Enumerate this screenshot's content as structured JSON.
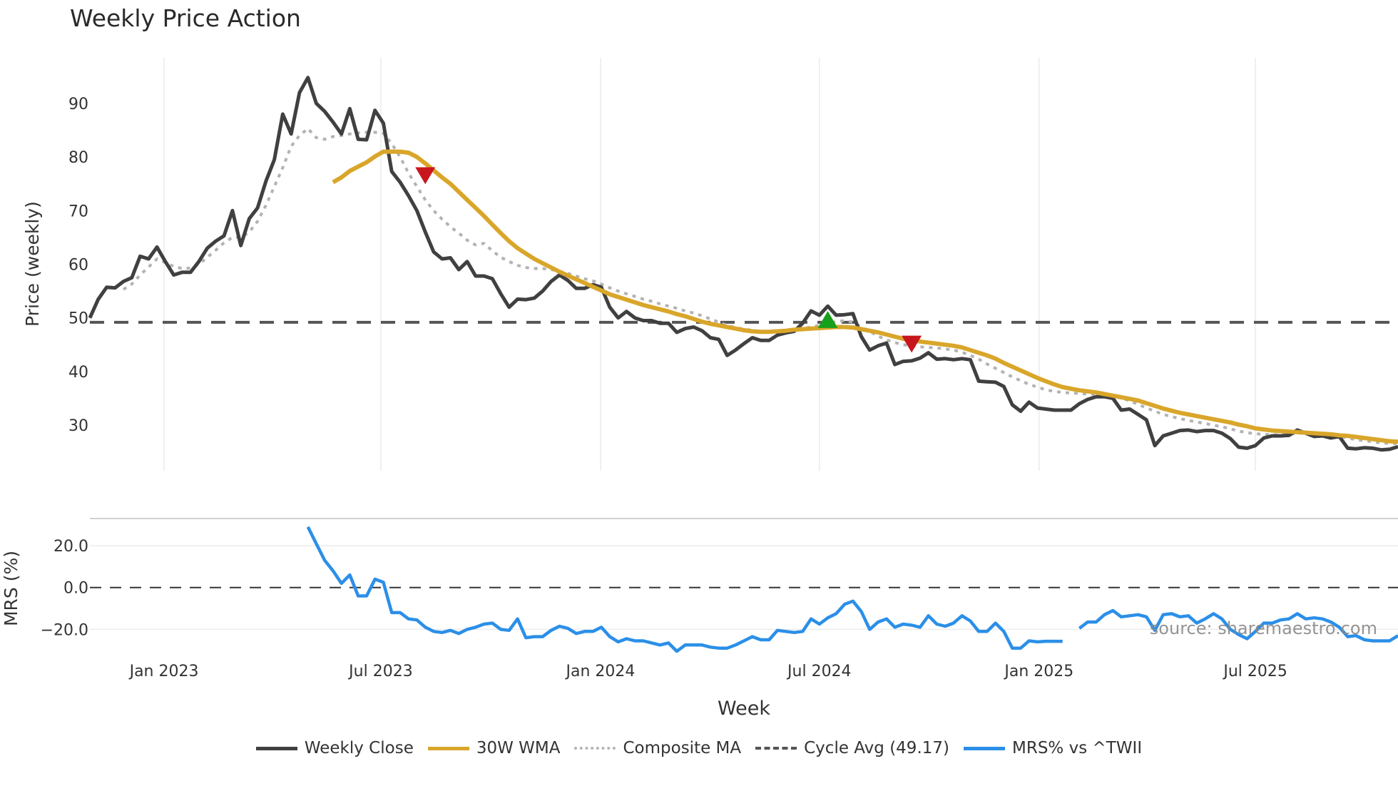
{
  "chart_data": {
    "type": "line",
    "title": "Weekly Price Action",
    "xlabel": "Week",
    "ylabel": "Price (weekly)",
    "ylabel_lower": "MRS (%)",
    "x_unit": "week index (weekly bars, approx. Nov 2022 - Oct 2025)",
    "xlim": [
      0,
      156
    ],
    "ylim": [
      21.5,
      98.5
    ],
    "ylim_lower": [
      -32.5,
      33
    ],
    "yticks": [
      30,
      40,
      50,
      60,
      70,
      80,
      90
    ],
    "yticks_lower": [
      {
        "v": 20,
        "label": "20.0"
      },
      {
        "v": 0,
        "label": "0.0"
      },
      {
        "v": -20,
        "label": "−20.0"
      }
    ],
    "xticks": [
      {
        "week": 8.85,
        "label": "Jan 2023"
      },
      {
        "week": 34.7,
        "label": "Jul 2023"
      },
      {
        "week": 60.9,
        "label": "Jan 2024"
      },
      {
        "week": 87.0,
        "label": "Jul 2024"
      },
      {
        "week": 113.2,
        "label": "Jan 2025"
      },
      {
        "week": 139.0,
        "label": "Jul 2025"
      }
    ],
    "cycle_avg": 49.17,
    "series": [
      {
        "name": "Weekly Close",
        "color": "#404040",
        "start": 0,
        "values": [
          50,
          53.5,
          55.7,
          55.6,
          56.8,
          57.5,
          61.5,
          61,
          63.2,
          60.5,
          58,
          58.5,
          58.5,
          60.5,
          63,
          64.3,
          65.3,
          70,
          63.5,
          68.5,
          70.5,
          75.5,
          79.5,
          88,
          84.3,
          92,
          94.8,
          90,
          88.5,
          86.5,
          84.3,
          89,
          83.3,
          83.2,
          88.7,
          86.3,
          77.3,
          75.3,
          72.8,
          70,
          66,
          62.3,
          61,
          61.2,
          59,
          60.5,
          57.8,
          57.8,
          57.3,
          54.5,
          52,
          53.5,
          53.4,
          53.7,
          55,
          56.8,
          58,
          57,
          55.5,
          55.5,
          56.2,
          55.7,
          52,
          50,
          51.2,
          50,
          49.5,
          49.5,
          49,
          49,
          47.3,
          48,
          48.3,
          47.6,
          46.3,
          46,
          43,
          44,
          45.2,
          46.3,
          45.8,
          45.8,
          46.8,
          47.2,
          47.5,
          49,
          51.3,
          50.5,
          52.2,
          50.5,
          50.6,
          50.8,
          46.5,
          44,
          44.8,
          45.3,
          41.3,
          41.9,
          42,
          42.5,
          43.5,
          42.3,
          42.4,
          42.2,
          42.4,
          42.2,
          38.2,
          38.1,
          38,
          37.2,
          33.8,
          32.6,
          34.3,
          33.2,
          33,
          32.8,
          32.8,
          32.8,
          34,
          34.8,
          35.3,
          35.3,
          35,
          32.8,
          33,
          32,
          31,
          26.2,
          28,
          28.5,
          29,
          29.1,
          28.8,
          29,
          29,
          28.5,
          27.5,
          25.9,
          25.7,
          26.2,
          27.6,
          28,
          28,
          28.1,
          29.1,
          28.5,
          27.9,
          28,
          27.6,
          27.9,
          25.7,
          25.6,
          25.8,
          25.7,
          25.4,
          25.5,
          26
        ]
      },
      {
        "name": "30W WMA",
        "color": "#D9A62A",
        "start": 29,
        "values": [
          75.3,
          76.2,
          77.4,
          78.2,
          79,
          80.1,
          81,
          81,
          81,
          80.8,
          80,
          78.8,
          77.5,
          76.2,
          75,
          73.5,
          72,
          70.5,
          69,
          67.4,
          65.8,
          64.3,
          63,
          62,
          61,
          60.2,
          59.4,
          58.6,
          57.9,
          57.2,
          56.5,
          55.8,
          55.1,
          54.4,
          53.9,
          53.4,
          52.9,
          52.4,
          52,
          51.6,
          51.2,
          50.7,
          50.3,
          49.8,
          49.3,
          48.9,
          48.6,
          48.3,
          48,
          47.7,
          47.5,
          47.4,
          47.4,
          47.5,
          47.6,
          47.8,
          47.9,
          48,
          48.1,
          48.2,
          48.3,
          48.3,
          48.2,
          47.9,
          47.6,
          47.3,
          46.9,
          46.5,
          46.1,
          45.8,
          45.6,
          45.4,
          45.2,
          45,
          44.8,
          44.5,
          44,
          43.5,
          43,
          42.4,
          41.6,
          40.9,
          40.2,
          39.5,
          38.8,
          38.2,
          37.6,
          37.1,
          36.8,
          36.5,
          36.3,
          36.1,
          35.8,
          35.5,
          35.2,
          34.9,
          34.6,
          34.1,
          33.6,
          33.1,
          32.7,
          32.3,
          32,
          31.7,
          31.4,
          31.1,
          30.8,
          30.5,
          30.1,
          29.8,
          29.4,
          29.2,
          29,
          28.9,
          28.8,
          28.7,
          28.6,
          28.5,
          28.4,
          28.3,
          28.1,
          28,
          27.8,
          27.6,
          27.4,
          27.2,
          27,
          26.9
        ]
      },
      {
        "name": "Composite MA",
        "color": "#B3B3B3",
        "start": 4,
        "values": [
          55.3,
          56.3,
          58,
          59.5,
          61,
          60.3,
          59.6,
          59.2,
          59.3,
          60,
          61.3,
          62.6,
          64,
          65,
          65,
          66,
          68,
          71,
          74.5,
          78,
          82,
          84,
          85.3,
          83.6,
          83.3,
          83.8,
          84,
          84.3,
          84.5,
          84.6,
          84.6,
          84.4,
          82.5,
          80,
          77,
          74.5,
          72,
          70,
          68.4,
          67,
          65.8,
          64.5,
          63.6,
          63.9,
          62.5,
          61.3,
          60.5,
          59.8,
          59.4,
          59.2,
          59.2,
          59,
          58.7,
          58.3,
          57.8,
          57.3,
          56.9,
          56.3,
          55.6,
          55,
          54.5,
          54,
          53.5,
          53.1,
          52.6,
          52.2,
          51.8,
          51.3,
          50.9,
          50.4,
          49.8,
          49.2,
          48.6,
          48.2,
          47.9,
          47.7,
          47.5,
          47.5,
          47.6,
          47.7,
          47.8,
          48,
          48.3,
          48.6,
          49,
          49.3,
          49.5,
          49.2,
          48.3,
          47.5,
          46.6,
          45.9,
          45.4,
          45,
          44.8,
          44.6,
          44.5,
          44.4,
          44.2,
          44,
          43.6,
          43,
          42.3,
          41.4,
          40.6,
          39.8,
          39,
          38.3,
          37.6,
          37.1,
          36.6,
          36.3,
          36.1,
          36,
          35.9,
          35.8,
          35.7,
          35.6,
          35.4,
          35.1,
          34.5,
          33.9,
          33.2,
          32.6,
          32,
          31.6,
          31.2,
          30.9,
          30.6,
          30.3,
          30,
          29.7,
          29.3,
          28.9,
          28.6,
          28.4,
          28.3,
          28.2,
          28.2,
          28.3,
          28.5,
          28.5,
          28.3,
          28.1,
          28,
          27.9,
          27.6,
          27.3,
          27.1,
          26.9,
          26.7,
          26.6,
          26.6
        ]
      },
      {
        "name": "MRS% vs ^TWII",
        "color": "#2B8FE8",
        "panel": "lower",
        "start": 26,
        "values": [
          29,
          21,
          13,
          8,
          2,
          6,
          -4,
          -4,
          4,
          2.5,
          -12,
          -12,
          -15,
          -15.5,
          -19,
          -21,
          -21.5,
          -20.5,
          -22,
          -20,
          -19,
          -17.5,
          -17,
          -20,
          -20.5,
          -15,
          -24,
          -23.5,
          -23.5,
          -20.5,
          -18.5,
          -19.5,
          -22,
          -21,
          -21,
          -19,
          -23.5,
          -26,
          -24.5,
          -25.5,
          -25.5,
          -26.5,
          -27.5,
          -26.5,
          -30.5,
          -27.5,
          -27.5,
          -27.5,
          -28.5,
          -29,
          -29,
          -27.5,
          -25.5,
          -23.5,
          -25,
          -25,
          -20.5,
          -21,
          -21.5,
          -21,
          -15,
          -17.5,
          -14.5,
          -12.5,
          -8,
          -6.5,
          -11.5,
          -20,
          -16.5,
          -15,
          -19,
          -17.5,
          -18,
          -19,
          -13.5,
          -17.5,
          -18.5,
          -17,
          -13.5,
          -16,
          -21,
          -21,
          -17,
          -21,
          -29,
          -29,
          -25.5,
          -26,
          -25.7,
          -25.7,
          -25.7,
          null,
          -19.5,
          -16.5,
          -16.5,
          -13,
          -11,
          -14,
          -13.5,
          -13,
          -14,
          -20.5,
          -13,
          -12.5,
          -14,
          -13.5,
          -17,
          -15,
          -12.5,
          -15,
          -20,
          -22.5,
          -24.5,
          -21,
          -17,
          -17,
          -15.5,
          -15,
          -12.5,
          -15,
          -14.5,
          -15,
          -16.5,
          -19,
          -23.5,
          -23,
          -25,
          -25.5,
          -25.5,
          -25.5,
          -23
        ]
      }
    ],
    "markers": [
      {
        "type": "sell",
        "shape": "triangle-down",
        "color": "#C8161D",
        "week": 40,
        "value": 76.6
      },
      {
        "type": "buy",
        "shape": "triangle-up",
        "color": "#17A01A",
        "week": 88,
        "value": 49.6
      },
      {
        "type": "sell",
        "shape": "triangle-down",
        "color": "#C8161D",
        "week": 98,
        "value": 45.2
      }
    ],
    "legend": {
      "placement": "bottom-center",
      "items": [
        {
          "label": "Weekly Close",
          "style": "solid",
          "color": "#404040"
        },
        {
          "label": "30W WMA",
          "style": "solid",
          "color": "#D9A62A"
        },
        {
          "label": "Composite MA",
          "style": "dotted",
          "color": "#B3B3B3"
        },
        {
          "label": "Cycle Avg (49.17)",
          "style": "dashed",
          "color": "#555555"
        },
        {
          "label": "MRS% vs ^TWII",
          "style": "solid",
          "color": "#2B8FE8"
        }
      ]
    },
    "annotation": "source: sharemaestro.com"
  }
}
